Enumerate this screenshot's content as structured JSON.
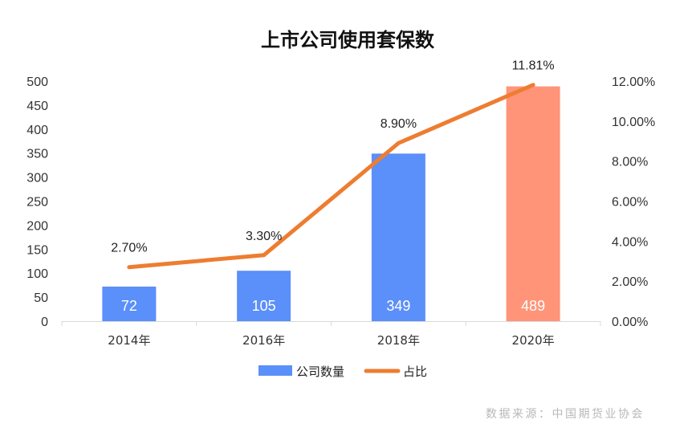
{
  "chart_data": {
    "type": "bar",
    "title": "上市公司使用套保数",
    "categories": [
      "2014年",
      "2016年",
      "2018年",
      "2020年"
    ],
    "series": [
      {
        "name": "公司数量",
        "type": "bar",
        "axis": "left",
        "values": [
          72,
          105,
          349,
          489
        ],
        "data_labels": [
          "72",
          "105",
          "349",
          "489"
        ],
        "colors": [
          "#5b8ff9",
          "#5b8ff9",
          "#5b8ff9",
          "#ff9479"
        ]
      },
      {
        "name": "占比",
        "type": "line",
        "axis": "right",
        "values": [
          2.7,
          3.3,
          8.9,
          11.81
        ],
        "data_labels": [
          "2.70%",
          "3.30%",
          "8.90%",
          "11.81%"
        ],
        "color": "#ed7d31"
      }
    ],
    "y_left": {
      "range": [
        0,
        500
      ],
      "ticks": [
        0,
        50,
        100,
        150,
        200,
        250,
        300,
        350,
        400,
        450,
        500
      ],
      "tick_labels": [
        "0",
        "50",
        "100",
        "150",
        "200",
        "250",
        "300",
        "350",
        "400",
        "450",
        "500"
      ]
    },
    "y_right": {
      "range": [
        0,
        12
      ],
      "ticks": [
        0,
        2,
        4,
        6,
        8,
        10,
        12
      ],
      "tick_labels": [
        "0.00%",
        "2.00%",
        "4.00%",
        "6.00%",
        "8.00%",
        "10.00%",
        "12.00%"
      ]
    },
    "grid": false,
    "legend": {
      "position": "bottom",
      "entries": [
        {
          "name": "公司数量",
          "color": "#5b8ff9",
          "shape": "rect"
        },
        {
          "name": "占比",
          "color": "#ed7d31",
          "shape": "line"
        }
      ]
    },
    "source": "数据来源：中国期货业协会"
  }
}
